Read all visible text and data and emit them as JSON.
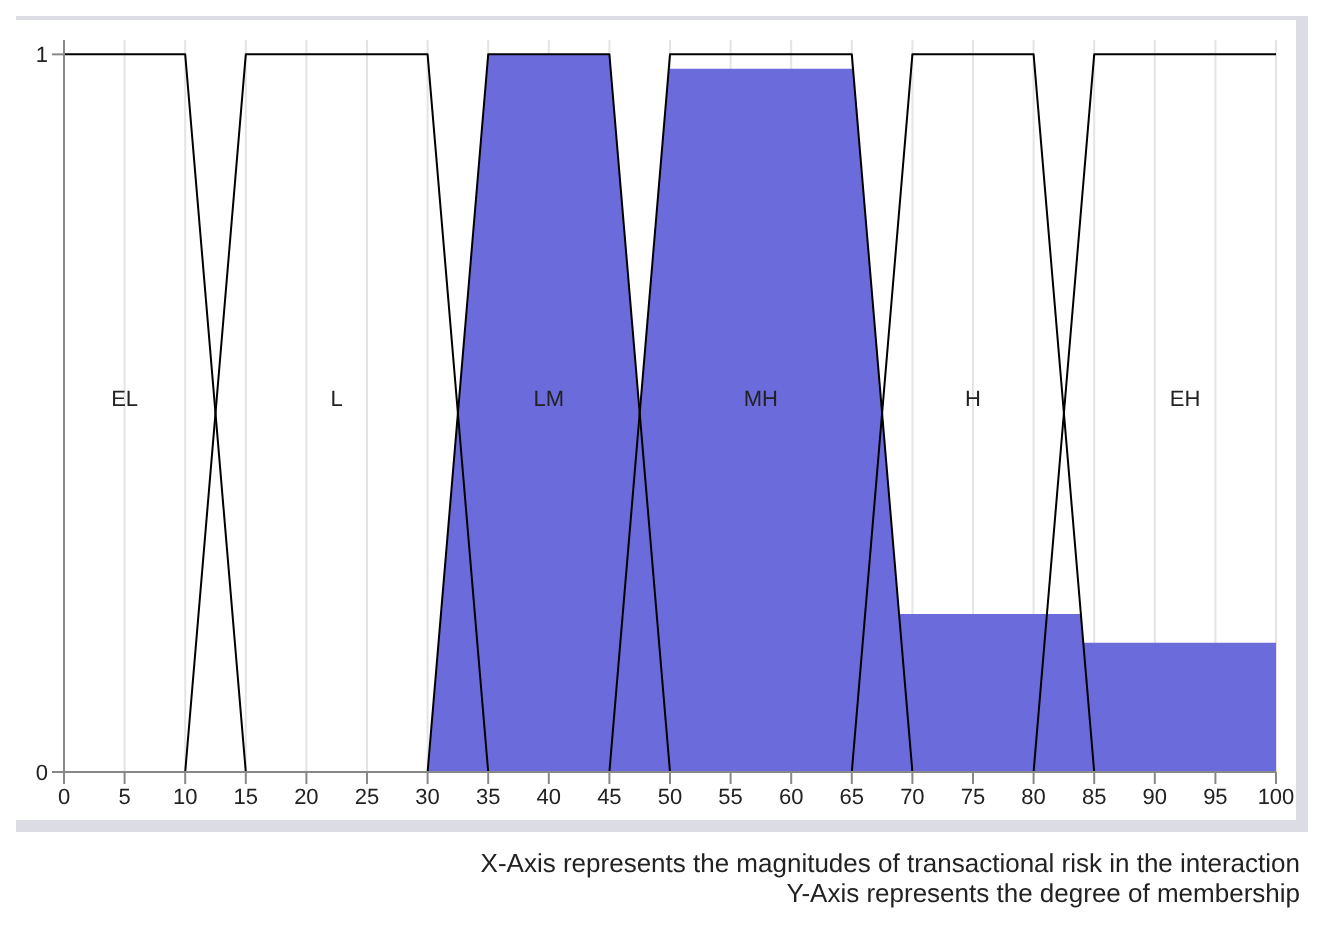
{
  "chart_data": {
    "type": "line",
    "xlim": [
      0,
      100
    ],
    "xticks": [
      0,
      5,
      10,
      15,
      20,
      25,
      30,
      35,
      40,
      45,
      50,
      55,
      60,
      65,
      70,
      75,
      80,
      85,
      90,
      95,
      100
    ],
    "ylim": [
      0,
      1.02
    ],
    "yticks": [
      0,
      1
    ],
    "grid": "x",
    "legend": false,
    "marker": "none",
    "line_style": "solid",
    "series": [
      {
        "type": "area",
        "color": "#6b6bdc",
        "x": [
          30,
          35,
          45,
          47.5,
          49.9,
          65.1,
          68.9,
          83.9,
          84.1,
          100
        ],
        "values": [
          0,
          1,
          1,
          0.5,
          0.98,
          0.98,
          0.22,
          0.22,
          0.18,
          0.18
        ]
      },
      {
        "color": "#000000",
        "x": [
          0,
          10,
          15
        ],
        "values": [
          1,
          1,
          0
        ]
      },
      {
        "color": "#000000",
        "x": [
          10,
          15,
          30,
          35
        ],
        "values": [
          0,
          1,
          1,
          0
        ]
      },
      {
        "color": "#000000",
        "x": [
          30,
          35,
          45,
          50
        ],
        "values": [
          0,
          1,
          1,
          0
        ]
      },
      {
        "color": "#000000",
        "x": [
          45,
          50,
          65,
          70
        ],
        "values": [
          0,
          1,
          1,
          0
        ]
      },
      {
        "color": "#000000",
        "x": [
          65,
          70,
          80,
          85
        ],
        "values": [
          0,
          1,
          1,
          0
        ]
      },
      {
        "color": "#000000",
        "x": [
          80,
          85,
          100
        ],
        "values": [
          0,
          1,
          1
        ]
      }
    ],
    "annotations": [
      "EL",
      "L",
      "LM",
      "MH",
      "H",
      "EH",
      "X-Axis represents the magnitudes of transactional risk in the interaction",
      "Y-Axis represents the degree of membership"
    ]
  }
}
